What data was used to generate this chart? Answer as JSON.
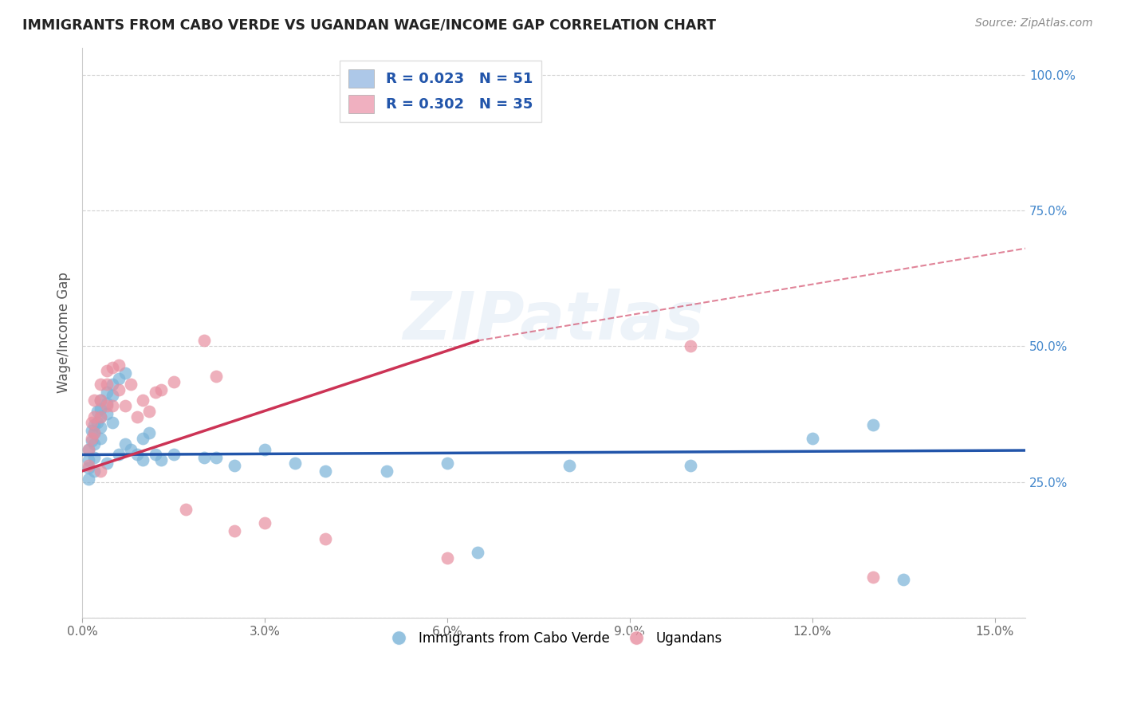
{
  "title": "IMMIGRANTS FROM CABO VERDE VS UGANDAN WAGE/INCOME GAP CORRELATION CHART",
  "source": "Source: ZipAtlas.com",
  "ylabel": "Wage/Income Gap",
  "cabo_verde_color": "#7ab3d8",
  "ugandan_color": "#e88fa0",
  "cabo_verde_line_color": "#2255aa",
  "ugandan_line_color": "#cc3355",
  "legend_color1": "#adc8e8",
  "legend_color2": "#f0b0c0",
  "watermark_text": "ZIPatlas",
  "cabo_verde_label": "Immigrants from Cabo Verde",
  "ugandan_label": "Ugandans",
  "legend_r1": "R = 0.023   N = 51",
  "legend_r2": "R = 0.302   N = 35",
  "cabo_verde_x": [
    0.001,
    0.001,
    0.001,
    0.001,
    0.0015,
    0.0015,
    0.002,
    0.002,
    0.002,
    0.002,
    0.002,
    0.0025,
    0.0025,
    0.003,
    0.003,
    0.003,
    0.003,
    0.003,
    0.004,
    0.004,
    0.004,
    0.004,
    0.005,
    0.005,
    0.005,
    0.006,
    0.006,
    0.007,
    0.007,
    0.008,
    0.009,
    0.01,
    0.01,
    0.011,
    0.012,
    0.013,
    0.015,
    0.02,
    0.022,
    0.025,
    0.03,
    0.035,
    0.04,
    0.05,
    0.06,
    0.065,
    0.08,
    0.1,
    0.12,
    0.13,
    0.135
  ],
  "cabo_verde_y": [
    0.31,
    0.29,
    0.275,
    0.255,
    0.345,
    0.325,
    0.355,
    0.34,
    0.32,
    0.295,
    0.27,
    0.38,
    0.36,
    0.4,
    0.385,
    0.37,
    0.35,
    0.33,
    0.415,
    0.395,
    0.375,
    0.285,
    0.43,
    0.41,
    0.36,
    0.44,
    0.3,
    0.45,
    0.32,
    0.31,
    0.3,
    0.33,
    0.29,
    0.34,
    0.3,
    0.29,
    0.3,
    0.295,
    0.295,
    0.28,
    0.31,
    0.285,
    0.27,
    0.27,
    0.285,
    0.12,
    0.28,
    0.28,
    0.33,
    0.355,
    0.07
  ],
  "ugandan_x": [
    0.001,
    0.001,
    0.0015,
    0.0015,
    0.002,
    0.002,
    0.002,
    0.003,
    0.003,
    0.003,
    0.003,
    0.004,
    0.004,
    0.004,
    0.005,
    0.005,
    0.006,
    0.006,
    0.007,
    0.008,
    0.009,
    0.01,
    0.011,
    0.012,
    0.013,
    0.015,
    0.017,
    0.02,
    0.022,
    0.025,
    0.03,
    0.04,
    0.06,
    0.1,
    0.13
  ],
  "ugandan_y": [
    0.31,
    0.28,
    0.36,
    0.33,
    0.4,
    0.37,
    0.34,
    0.43,
    0.4,
    0.37,
    0.27,
    0.455,
    0.43,
    0.39,
    0.46,
    0.39,
    0.465,
    0.42,
    0.39,
    0.43,
    0.37,
    0.4,
    0.38,
    0.415,
    0.42,
    0.435,
    0.2,
    0.51,
    0.445,
    0.16,
    0.175,
    0.145,
    0.11,
    0.5,
    0.075
  ],
  "ugandan_line_x0": 0.0,
  "ugandan_line_y0": 0.27,
  "ugandan_line_x1": 0.065,
  "ugandan_line_y1": 0.51,
  "ugandan_line_xdash": 0.155,
  "ugandan_line_ydash": 0.68,
  "cabo_line_x0": 0.0,
  "cabo_line_y0": 0.3,
  "cabo_line_x1": 0.155,
  "cabo_line_y1": 0.308,
  "xlim": [
    0.0,
    0.155
  ],
  "ylim": [
    0.0,
    1.05
  ],
  "xticks": [
    0.0,
    0.03,
    0.06,
    0.09,
    0.12,
    0.15
  ],
  "xticklabels": [
    "0.0%",
    "3.0%",
    "6.0%",
    "9.0%",
    "12.0%",
    "15.0%"
  ],
  "yticks": [
    0.0,
    0.25,
    0.5,
    0.75,
    1.0
  ],
  "yticklabels": [
    "",
    "25.0%",
    "50.0%",
    "75.0%",
    "100.0%"
  ]
}
